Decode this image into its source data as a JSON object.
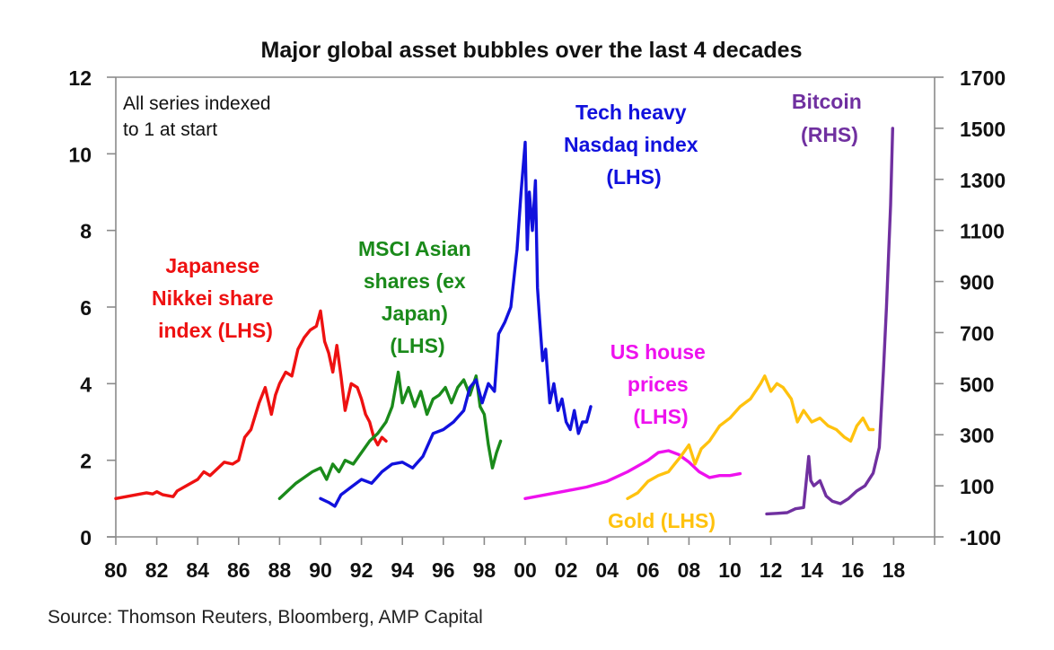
{
  "chart_data": {
    "type": "line",
    "title": "Major global asset bubbles over the last 4 decades",
    "note": [
      "All series indexed",
      "to 1 at start"
    ],
    "source": "Source: Thomson Reuters, Bloomberg, AMP Capital",
    "xlim": [
      1980,
      2020
    ],
    "ylim_left": [
      0,
      12
    ],
    "ylim_right": [
      -100,
      1700
    ],
    "x_ticks": [
      1980,
      1982,
      1984,
      1986,
      1988,
      1990,
      1992,
      1994,
      1996,
      1998,
      2000,
      2002,
      2004,
      2006,
      2008,
      2010,
      2012,
      2014,
      2016,
      2018,
      2020
    ],
    "x_tick_labels": [
      "80",
      "82",
      "84",
      "86",
      "88",
      "90",
      "92",
      "94",
      "96",
      "98",
      "00",
      "02",
      "04",
      "06",
      "08",
      "10",
      "12",
      "14",
      "16",
      "18",
      ""
    ],
    "y_left_ticks": [
      0,
      2,
      4,
      6,
      8,
      10,
      12
    ],
    "y_left_tick_labels": [
      "0",
      "2",
      "4",
      "6",
      "8",
      "10",
      "12"
    ],
    "y_right_ticks": [
      -100,
      100,
      300,
      500,
      700,
      900,
      1100,
      1300,
      1500,
      1700
    ],
    "y_right_tick_labels": [
      "-100",
      "100",
      "300",
      "500",
      "700",
      "900",
      "1100",
      "1300",
      "1500",
      "1700"
    ],
    "grid": false,
    "series": [
      {
        "name": "Japanese Nikkei share index (LHS)",
        "label_lines": [
          "Japanese",
          "Nikkei share",
          "index (LHS)"
        ],
        "axis": "left",
        "color": "#ee1111",
        "x": [
          1980.0,
          1980.5,
          1981.0,
          1981.5,
          1981.8,
          1982.0,
          1982.3,
          1982.8,
          1983.0,
          1983.5,
          1984.0,
          1984.3,
          1984.6,
          1985.0,
          1985.3,
          1985.7,
          1986.0,
          1986.3,
          1986.6,
          1987.0,
          1987.3,
          1987.6,
          1987.8,
          1988.0,
          1988.3,
          1988.6,
          1988.9,
          1989.2,
          1989.5,
          1989.8,
          1990.0,
          1990.2,
          1990.4,
          1990.6,
          1990.8,
          1991.0,
          1991.2,
          1991.5,
          1991.8,
          1992.0,
          1992.2,
          1992.4,
          1992.6,
          1992.8,
          1993.0,
          1993.2
        ],
        "y": [
          1.0,
          1.05,
          1.1,
          1.15,
          1.12,
          1.18,
          1.1,
          1.05,
          1.2,
          1.35,
          1.5,
          1.7,
          1.6,
          1.8,
          1.95,
          1.9,
          2.0,
          2.6,
          2.8,
          3.5,
          3.9,
          3.2,
          3.7,
          4.0,
          4.3,
          4.2,
          4.9,
          5.2,
          5.4,
          5.5,
          5.9,
          5.1,
          4.8,
          4.3,
          5.0,
          4.2,
          3.3,
          4.0,
          3.9,
          3.6,
          3.2,
          3.0,
          2.6,
          2.4,
          2.6,
          2.5
        ]
      },
      {
        "name": "MSCI Asian shares (ex Japan) (LHS)",
        "label_lines": [
          "MSCI Asian",
          "shares (ex",
          "Japan)",
          "(LHS)"
        ],
        "axis": "left",
        "color": "#1a8a1a",
        "x": [
          1988.0,
          1988.4,
          1988.8,
          1989.2,
          1989.6,
          1990.0,
          1990.3,
          1990.6,
          1990.9,
          1991.2,
          1991.6,
          1992.0,
          1992.4,
          1992.8,
          1993.2,
          1993.5,
          1993.8,
          1994.0,
          1994.3,
          1994.6,
          1994.9,
          1995.2,
          1995.5,
          1995.8,
          1996.1,
          1996.4,
          1996.7,
          1997.0,
          1997.3,
          1997.6,
          1997.8,
          1998.0,
          1998.2,
          1998.4,
          1998.6,
          1998.8
        ],
        "y": [
          1.0,
          1.2,
          1.4,
          1.55,
          1.7,
          1.8,
          1.5,
          1.9,
          1.7,
          2.0,
          1.9,
          2.2,
          2.5,
          2.7,
          3.0,
          3.4,
          4.3,
          3.5,
          3.9,
          3.4,
          3.8,
          3.2,
          3.6,
          3.7,
          3.9,
          3.5,
          3.9,
          4.1,
          3.7,
          4.2,
          3.4,
          3.2,
          2.4,
          1.8,
          2.2,
          2.5
        ]
      },
      {
        "name": "Tech heavy Nasdaq index (LHS)",
        "label_lines": [
          "Tech heavy",
          "Nasdaq index",
          "(LHS)"
        ],
        "axis": "left",
        "color": "#1111dd",
        "x": [
          1990.0,
          1990.4,
          1990.7,
          1991.0,
          1991.5,
          1992.0,
          1992.5,
          1993.0,
          1993.5,
          1994.0,
          1994.5,
          1995.0,
          1995.5,
          1996.0,
          1996.5,
          1997.0,
          1997.3,
          1997.6,
          1997.9,
          1998.2,
          1998.5,
          1998.7,
          1999.0,
          1999.3,
          1999.6,
          1999.8,
          2000.0,
          2000.1,
          2000.2,
          2000.35,
          2000.5,
          2000.6,
          2000.7,
          2000.85,
          2001.0,
          2001.2,
          2001.4,
          2001.6,
          2001.8,
          2002.0,
          2002.2,
          2002.4,
          2002.6,
          2002.8,
          2003.0,
          2003.2
        ],
        "y": [
          1.0,
          0.9,
          0.8,
          1.1,
          1.3,
          1.5,
          1.4,
          1.7,
          1.9,
          1.95,
          1.8,
          2.1,
          2.7,
          2.8,
          3.0,
          3.3,
          3.9,
          4.1,
          3.5,
          4.0,
          3.8,
          5.3,
          5.6,
          6.0,
          7.5,
          9.0,
          10.3,
          7.5,
          9.0,
          8.0,
          9.3,
          6.5,
          5.7,
          4.6,
          4.9,
          3.5,
          4.0,
          3.3,
          3.6,
          3.0,
          2.8,
          3.3,
          2.7,
          3.0,
          3.0,
          3.4
        ]
      },
      {
        "name": "US house prices (LHS)",
        "label_lines": [
          "US house",
          "prices",
          "(LHS)"
        ],
        "axis": "left",
        "color": "#ee11ee",
        "x": [
          2000.0,
          2001.0,
          2002.0,
          2003.0,
          2004.0,
          2005.0,
          2006.0,
          2006.5,
          2007.0,
          2007.5,
          2008.0,
          2008.5,
          2009.0,
          2009.5,
          2010.0,
          2010.5
        ],
        "y": [
          1.0,
          1.1,
          1.2,
          1.3,
          1.45,
          1.7,
          2.0,
          2.2,
          2.25,
          2.15,
          1.95,
          1.7,
          1.55,
          1.6,
          1.6,
          1.65
        ]
      },
      {
        "name": "Gold (LHS)",
        "label_lines": [
          "Gold (LHS)"
        ],
        "axis": "left",
        "color": "#ffc20e",
        "x": [
          2005.0,
          2005.5,
          2006.0,
          2006.5,
          2007.0,
          2007.3,
          2007.6,
          2008.0,
          2008.3,
          2008.6,
          2009.0,
          2009.5,
          2010.0,
          2010.5,
          2011.0,
          2011.5,
          2011.7,
          2012.0,
          2012.3,
          2012.6,
          2013.0,
          2013.3,
          2013.6,
          2014.0,
          2014.4,
          2014.8,
          2015.2,
          2015.6,
          2015.9,
          2016.2,
          2016.5,
          2016.8,
          2017.0
        ],
        "y": [
          1.0,
          1.15,
          1.45,
          1.6,
          1.7,
          1.9,
          2.1,
          2.4,
          1.9,
          2.3,
          2.5,
          2.9,
          3.1,
          3.4,
          3.6,
          4.0,
          4.2,
          3.8,
          4.0,
          3.9,
          3.6,
          3.0,
          3.3,
          3.0,
          3.1,
          2.9,
          2.8,
          2.6,
          2.5,
          2.9,
          3.1,
          2.8,
          2.8
        ]
      },
      {
        "name": "Bitcoin (RHS)",
        "label_lines": [
          "Bitcoin",
          "(RHS)"
        ],
        "axis": "right",
        "color": "#7030a0",
        "x": [
          2011.8,
          2012.3,
          2012.8,
          2013.2,
          2013.6,
          2013.85,
          2013.95,
          2014.1,
          2014.4,
          2014.7,
          2015.0,
          2015.4,
          2015.8,
          2016.2,
          2016.6,
          2017.0,
          2017.3,
          2017.5,
          2017.65,
          2017.75,
          2017.85,
          2017.95
        ],
        "y": [
          -10,
          -8,
          -5,
          10,
          15,
          215,
          120,
          100,
          120,
          60,
          40,
          30,
          50,
          80,
          100,
          150,
          250,
          550,
          800,
          1000,
          1200,
          1500
        ]
      }
    ]
  }
}
